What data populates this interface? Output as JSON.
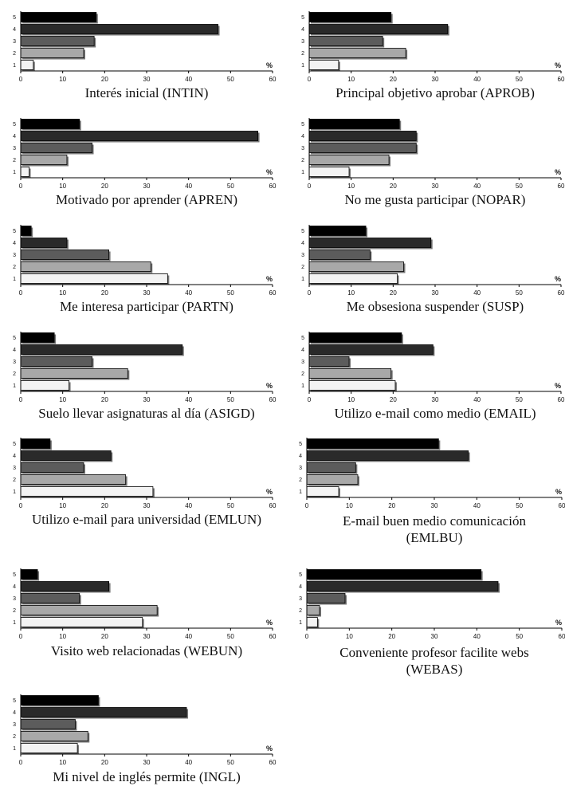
{
  "figure": {
    "legend_levels": [
      "1",
      "2",
      "3",
      "4",
      "5"
    ],
    "percent_symbol": "%",
    "level_colors": [
      "#f3f3f3",
      "#a8a8a8",
      "#5c5c5c",
      "#2a2a2a",
      "#000000"
    ]
  },
  "chart_data": [
    {
      "type": "bar",
      "orientation": "horizontal",
      "title": "Interés inicial (INTIN)",
      "categories": [
        "1",
        "2",
        "3",
        "4",
        "5"
      ],
      "values": [
        3,
        15,
        17.5,
        47,
        18
      ],
      "xlim": [
        0,
        60
      ],
      "xticks": [
        0,
        10,
        20,
        30,
        40,
        50,
        60
      ],
      "xlabel": "%",
      "grid": false
    },
    {
      "type": "bar",
      "orientation": "horizontal",
      "title": "Principal objetivo aprobar (APROB)",
      "categories": [
        "1",
        "2",
        "3",
        "4",
        "5"
      ],
      "values": [
        7,
        23,
        17.5,
        33,
        19.5
      ],
      "xlim": [
        0,
        60
      ],
      "xticks": [
        0,
        10,
        20,
        30,
        40,
        50,
        60
      ],
      "xlabel": "%",
      "grid": false
    },
    {
      "type": "bar",
      "orientation": "horizontal",
      "title": "Motivado por aprender (APREN)",
      "categories": [
        "1",
        "2",
        "3",
        "4",
        "5"
      ],
      "values": [
        2,
        11,
        17,
        56.5,
        14
      ],
      "xlim": [
        0,
        60
      ],
      "xticks": [
        0,
        10,
        20,
        30,
        40,
        50,
        60
      ],
      "xlabel": "%",
      "grid": false
    },
    {
      "type": "bar",
      "orientation": "horizontal",
      "title": "No me gusta participar (NOPAR)",
      "categories": [
        "1",
        "2",
        "3",
        "4",
        "5"
      ],
      "values": [
        9.5,
        19,
        25.5,
        25.5,
        21.5
      ],
      "xlim": [
        0,
        60
      ],
      "xticks": [
        0,
        10,
        20,
        30,
        40,
        50,
        60
      ],
      "xlabel": "%",
      "grid": false
    },
    {
      "type": "bar",
      "orientation": "horizontal",
      "title": "Me interesa participar (PARTN)",
      "categories": [
        "1",
        "2",
        "3",
        "4",
        "5"
      ],
      "values": [
        35,
        31,
        21,
        11,
        2.5
      ],
      "xlim": [
        0,
        60
      ],
      "xticks": [
        0,
        10,
        20,
        30,
        40,
        50,
        60
      ],
      "xlabel": "%",
      "grid": false
    },
    {
      "type": "bar",
      "orientation": "horizontal",
      "title": "Me obsesiona suspender (SUSP)",
      "categories": [
        "1",
        "2",
        "3",
        "4",
        "5"
      ],
      "values": [
        21,
        22.5,
        14.5,
        29,
        13.5
      ],
      "xlim": [
        0,
        60
      ],
      "xticks": [
        0,
        10,
        20,
        30,
        40,
        50,
        60
      ],
      "xlabel": "%",
      "grid": false
    },
    {
      "type": "bar",
      "orientation": "horizontal",
      "title": "Suelo llevar asignaturas al día (ASIGD)",
      "categories": [
        "1",
        "2",
        "3",
        "4",
        "5"
      ],
      "values": [
        11.5,
        25.5,
        17,
        38.5,
        8
      ],
      "xlim": [
        0,
        60
      ],
      "xticks": [
        0,
        10,
        20,
        30,
        40,
        50,
        60
      ],
      "xlabel": "%",
      "grid": false
    },
    {
      "type": "bar",
      "orientation": "horizontal",
      "title": "Utilizo e-mail como medio (EMAIL)",
      "categories": [
        "1",
        "2",
        "3",
        "4",
        "5"
      ],
      "values": [
        20.5,
        19.5,
        9.5,
        29.5,
        22
      ],
      "xlim": [
        0,
        60
      ],
      "xticks": [
        0,
        10,
        20,
        30,
        40,
        50,
        60
      ],
      "xlabel": "%",
      "grid": false
    },
    {
      "type": "bar",
      "orientation": "horizontal",
      "title": "Utilizo e-mail para universidad (EMLUN)",
      "categories": [
        "1",
        "2",
        "3",
        "4",
        "5"
      ],
      "values": [
        31.5,
        25,
        15,
        21.5,
        7
      ],
      "xlim": [
        0,
        60
      ],
      "xticks": [
        0,
        10,
        20,
        30,
        40,
        50,
        60
      ],
      "xlabel": "%",
      "grid": false
    },
    {
      "type": "bar",
      "orientation": "horizontal",
      "title": "E-mail buen medio comunicación (EMLBU)",
      "categories": [
        "1",
        "2",
        "3",
        "4",
        "5"
      ],
      "values": [
        7.5,
        12,
        11.5,
        38,
        31
      ],
      "xlim": [
        0,
        60
      ],
      "xticks": [
        0,
        10,
        20,
        30,
        40,
        50,
        60
      ],
      "xlabel": "%",
      "grid": false
    },
    {
      "type": "bar",
      "orientation": "horizontal",
      "title": "Visito web relacionadas (WEBUN)",
      "categories": [
        "1",
        "2",
        "3",
        "4",
        "5"
      ],
      "values": [
        29,
        32.5,
        14,
        21,
        4
      ],
      "xlim": [
        0,
        60
      ],
      "xticks": [
        0,
        10,
        20,
        30,
        40,
        50,
        60
      ],
      "xlabel": "%",
      "grid": false
    },
    {
      "type": "bar",
      "orientation": "horizontal",
      "title": "Conveniente profesor facilite webs (WEBAS)",
      "categories": [
        "1",
        "2",
        "3",
        "4",
        "5"
      ],
      "values": [
        2.5,
        3,
        9,
        45,
        41
      ],
      "xlim": [
        0,
        60
      ],
      "xticks": [
        0,
        10,
        20,
        30,
        40,
        50,
        60
      ],
      "xlabel": "%",
      "grid": false
    },
    {
      "type": "bar",
      "orientation": "horizontal",
      "title": "Mi nivel de inglés permite (INGL)",
      "categories": [
        "1",
        "2",
        "3",
        "4",
        "5"
      ],
      "values": [
        13.5,
        16,
        13,
        39.5,
        18.5
      ],
      "xlim": [
        0,
        60
      ],
      "xticks": [
        0,
        10,
        20,
        30,
        40,
        50,
        60
      ],
      "xlabel": "%",
      "grid": false
    }
  ]
}
